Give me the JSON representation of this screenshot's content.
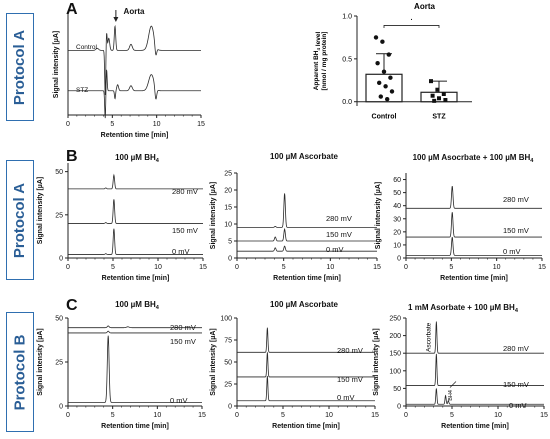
{
  "labels": {
    "panelA": "A",
    "panelB": "B",
    "panelC": "C",
    "protoA1": "Protocol A",
    "protoA2": "Protocol A",
    "protoB": "Protocol B"
  },
  "colors": {
    "trace": "#2a2a2a",
    "axis": "#222222",
    "protocol_box": "#2f6fb0",
    "protocol_text": "#2a5e96"
  },
  "chart_data": [
    {
      "id": "A-chrom",
      "type": "line",
      "title": "Aorta",
      "xlabel": "Retention time [min]",
      "ylabel": "Signal intensity [µA]",
      "xlim": [
        0,
        15
      ],
      "xticks": [
        0,
        5,
        10,
        15
      ],
      "arrow_at": 5.4,
      "series": [
        {
          "name": "Control",
          "baseline": 0.64,
          "peaks": [
            {
              "x": 3.3,
              "h": 0.02,
              "w": 0.15
            },
            {
              "x": 4.2,
              "h": -0.45,
              "w": 0.06
            },
            {
              "x": 4.35,
              "h": 0.18,
              "w": 0.06
            },
            {
              "x": 4.6,
              "h": 0.12,
              "w": 0.1
            },
            {
              "x": 5.3,
              "h": 0.24,
              "w": 0.08
            },
            {
              "x": 7.1,
              "h": 0.06,
              "w": 0.15
            },
            {
              "x": 9.4,
              "h": 0.24,
              "w": 0.3
            },
            {
              "x": 9.9,
              "h": -0.1,
              "w": 0.1
            }
          ]
        },
        {
          "name": "STZ",
          "baseline": 0.24,
          "peaks": [
            {
              "x": 4.2,
              "h": -0.28,
              "w": 0.06
            },
            {
              "x": 4.35,
              "h": 0.22,
              "w": 0.06
            },
            {
              "x": 5.3,
              "h": -0.08,
              "w": 0.06
            },
            {
              "x": 5.6,
              "h": 0.06,
              "w": 0.1
            },
            {
              "x": 7.1,
              "h": 0.05,
              "w": 0.15
            },
            {
              "x": 9.4,
              "h": 0.16,
              "w": 0.3
            },
            {
              "x": 9.9,
              "h": -0.12,
              "w": 0.1
            }
          ]
        }
      ]
    },
    {
      "id": "A-bar",
      "type": "bar",
      "title": "Aorta",
      "ylabel": "Apparent BH4 level [nmol / mg protein]",
      "categories": [
        "Control",
        "STZ"
      ],
      "values": [
        0.32,
        0.11
      ],
      "errors": [
        0.24,
        0.13
      ],
      "ylim": [
        -0.05,
        1.0
      ],
      "yticks": [
        0.0,
        0.5,
        1.0
      ],
      "significance": "·",
      "points": [
        [
          0.75,
          0.7,
          0.55,
          0.45,
          0.35,
          0.28,
          0.22,
          0.18,
          0.12,
          0.06,
          0.03
        ],
        [
          0.24,
          0.14,
          0.09,
          0.07,
          0.04,
          0.02,
          0.01
        ]
      ]
    },
    {
      "id": "B1",
      "type": "line",
      "title": "100 µM BH4",
      "ylabel": "Signal intensity [µA]",
      "xlabel": "Retention time [min]",
      "xlim": [
        0,
        15
      ],
      "xticks": [
        0,
        5,
        10,
        15
      ],
      "ylim": [
        0,
        55
      ],
      "yticks": [
        0,
        25,
        50
      ],
      "series": [
        {
          "name": "280 mV",
          "baseline": 40,
          "peaks": [
            {
              "x": 5.1,
              "h": 8,
              "w": 0.08
            },
            {
              "x": 4.2,
              "h": 0.6,
              "w": 0.08
            }
          ]
        },
        {
          "name": "150 mV",
          "baseline": 20,
          "peaks": [
            {
              "x": 5.1,
              "h": 14,
              "w": 0.08
            },
            {
              "x": 4.2,
              "h": 0.5,
              "w": 0.08
            }
          ]
        },
        {
          "name": "0 mV",
          "baseline": 2,
          "peaks": [
            {
              "x": 5.1,
              "h": 15,
              "w": 0.08
            },
            {
              "x": 4.2,
              "h": 0.5,
              "w": 0.08
            }
          ]
        }
      ]
    },
    {
      "id": "B2",
      "type": "line",
      "title": "100 µM Ascorbate",
      "ylabel": "Signal intensity [µA]",
      "xlabel": "Retention time [min]",
      "xlim": [
        0,
        15
      ],
      "xticks": [
        0,
        5,
        10,
        15
      ],
      "ylim": [
        0,
        25
      ],
      "yticks": [
        0,
        5,
        10,
        15,
        20,
        25
      ],
      "series": [
        {
          "name": "280 mV",
          "baseline": 9,
          "peaks": [
            {
              "x": 5.1,
              "h": 10,
              "w": 0.08
            },
            {
              "x": 4.1,
              "h": 0.3,
              "w": 0.08
            }
          ]
        },
        {
          "name": "150 mV",
          "baseline": 5,
          "peaks": [
            {
              "x": 5.1,
              "h": 3.5,
              "w": 0.08
            },
            {
              "x": 4.1,
              "h": 1.2,
              "w": 0.08
            }
          ]
        },
        {
          "name": "0 mV",
          "baseline": 2,
          "peaks": [
            {
              "x": 5.1,
              "h": 1.5,
              "w": 0.08
            },
            {
              "x": 4.1,
              "h": 1,
              "w": 0.08
            }
          ]
        }
      ]
    },
    {
      "id": "B3",
      "type": "line",
      "title": "100 µM Asocrbate + 100 µM BH4",
      "ylabel": "Signal intensity [µA]",
      "xlabel": "Retention time [min]",
      "xlim": [
        0,
        15
      ],
      "xticks": [
        0,
        5,
        10,
        15
      ],
      "ylim": [
        0,
        65
      ],
      "yticks": [
        0,
        10,
        20,
        30,
        40,
        50,
        60
      ],
      "series": [
        {
          "name": "280 mV",
          "baseline": 38,
          "peaks": [
            {
              "x": 5.1,
              "h": 17,
              "w": 0.08
            }
          ]
        },
        {
          "name": "150 mV",
          "baseline": 16,
          "peaks": [
            {
              "x": 5.1,
              "h": 19,
              "w": 0.08
            }
          ]
        },
        {
          "name": "0 mV",
          "baseline": 2,
          "peaks": [
            {
              "x": 5.1,
              "h": 14,
              "w": 0.08
            }
          ]
        }
      ]
    },
    {
      "id": "C1",
      "type": "line",
      "title": "100 µM BH4",
      "ylabel": "Signal intensity [µA]",
      "xlabel": "Retention time [min]",
      "xlim": [
        0,
        15
      ],
      "xticks": [
        0,
        5,
        10,
        15
      ],
      "ylim": [
        0,
        50
      ],
      "yticks": [
        0,
        25,
        50
      ],
      "series": [
        {
          "name": "280 mV",
          "baseline": 44.5,
          "peaks": [
            {
              "x": 4.5,
              "h": 1,
              "w": 0.1
            },
            {
              "x": 6.7,
              "h": 0.5,
              "w": 0.15
            }
          ]
        },
        {
          "name": "150 mV",
          "baseline": 41.5,
          "peaks": [
            {
              "x": 4.5,
              "h": 1,
              "w": 0.1
            }
          ]
        },
        {
          "name": "0 mV",
          "baseline": 2,
          "peaks": [
            {
              "x": 4.5,
              "h": 38,
              "w": 0.1
            }
          ]
        }
      ]
    },
    {
      "id": "C2",
      "type": "line",
      "title": "100 µM Ascorbate",
      "ylabel": "Signal intensity [µA]",
      "xlabel": "Retention time [min]",
      "xlim": [
        0,
        15
      ],
      "xticks": [
        0,
        5,
        10,
        15
      ],
      "ylim": [
        0,
        100
      ],
      "yticks": [
        0,
        25,
        50,
        75,
        100
      ],
      "series": [
        {
          "name": "280 mV",
          "baseline": 61,
          "peaks": [
            {
              "x": 3.3,
              "h": 28,
              "w": 0.06
            }
          ]
        },
        {
          "name": "150 mV",
          "baseline": 33,
          "peaks": [
            {
              "x": 3.3,
              "h": 28,
              "w": 0.06
            }
          ]
        },
        {
          "name": "0 mV",
          "baseline": 6,
          "peaks": [
            {
              "x": 3.3,
              "h": 28,
              "w": 0.06
            }
          ]
        }
      ]
    },
    {
      "id": "C3",
      "type": "line",
      "title": "1 mM Asorbate + 100 µM BH4",
      "ylabel": "Signal intensity [µA]",
      "xlabel": "Retention time [min]",
      "xlim": [
        0,
        15
      ],
      "xticks": [
        0,
        5,
        10,
        15
      ],
      "ylim": [
        0,
        250
      ],
      "yticks": [
        0,
        50,
        100,
        150,
        200,
        250
      ],
      "peak_labels": [
        "Ascorbate",
        "BH4"
      ],
      "series": [
        {
          "name": "280 mV",
          "baseline": 150,
          "peaks": [
            {
              "x": 3.3,
              "h": 90,
              "w": 0.06
            }
          ]
        },
        {
          "name": "150 mV",
          "baseline": 58,
          "peaks": [
            {
              "x": 3.3,
              "h": 90,
              "w": 0.06
            }
          ]
        },
        {
          "name": "0 mV",
          "baseline": 5,
          "peaks": [
            {
              "x": 3.3,
              "h": 45,
              "w": 0.06
            },
            {
              "x": 4.3,
              "h": 25,
              "w": 0.06
            },
            {
              "x": 4.6,
              "h": 10,
              "w": 0.06
            }
          ]
        }
      ]
    }
  ]
}
